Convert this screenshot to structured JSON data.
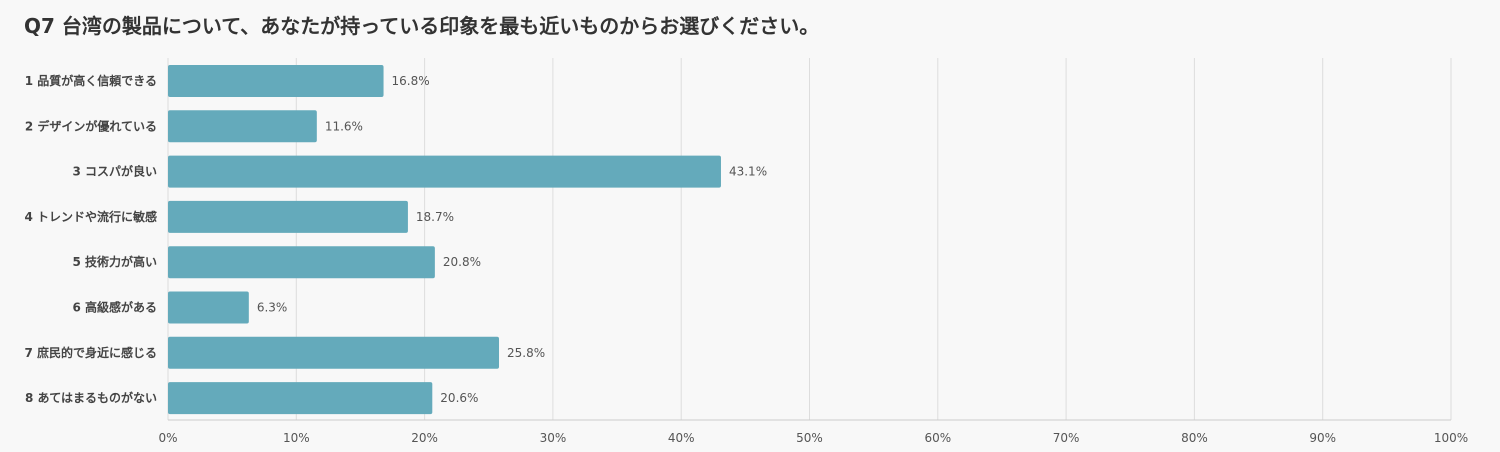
{
  "chart_data": {
    "type": "bar",
    "orientation": "horizontal",
    "title": "Q7 台湾の製品について、あなたが持っている印象を最も近いものからお選びください。",
    "categories": [
      "1 品質が高く信頼できる",
      "2 デザインが優れている",
      "3 コスパが良い",
      "4 トレンドや流行に敏感",
      "5 技術力が高い",
      "6 高級感がある",
      "7 庶民的で身近に感じる",
      "8 あてはまるものがない"
    ],
    "values": [
      16.8,
      11.6,
      43.1,
      18.7,
      20.8,
      6.3,
      25.8,
      20.6
    ],
    "value_labels": [
      "16.8%",
      "11.6%",
      "43.1%",
      "18.7%",
      "20.8%",
      "6.3%",
      "25.8%",
      "20.6%"
    ],
    "xlim": [
      0,
      100
    ],
    "x_ticks": [
      0,
      10,
      20,
      30,
      40,
      50,
      60,
      70,
      80,
      90,
      100
    ],
    "x_tick_labels": [
      "0%",
      "10%",
      "20%",
      "30%",
      "40%",
      "50%",
      "60%",
      "70%",
      "80%",
      "90%",
      "100%"
    ],
    "grid": true,
    "bar_color": "#64aabb"
  }
}
